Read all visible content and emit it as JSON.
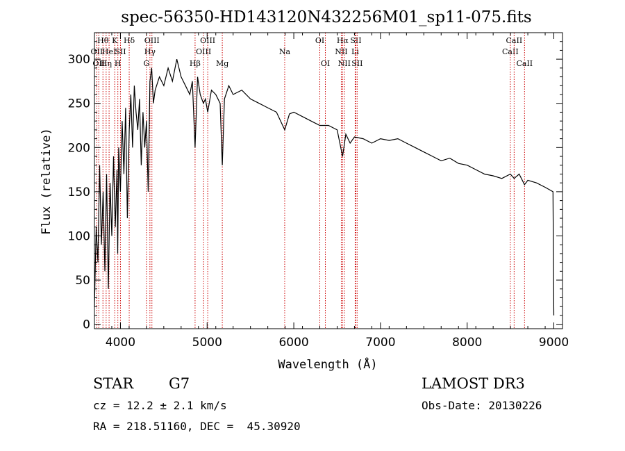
{
  "chart_data": {
    "type": "line",
    "title": "spec-56350-HD143120N432256M01_sp11-075.fits",
    "xlabel": "Wavelength (Å)",
    "ylabel": "Flux (relative)",
    "xlim": [
      3700,
      9100
    ],
    "ylim": [
      -5,
      330
    ],
    "x_ticks": [
      4000,
      5000,
      6000,
      7000,
      8000,
      9000
    ],
    "y_ticks": [
      0,
      50,
      100,
      150,
      200,
      250,
      300
    ],
    "series": [
      {
        "name": "spectrum",
        "x": [
          3700,
          3720,
          3740,
          3760,
          3780,
          3800,
          3820,
          3840,
          3860,
          3880,
          3900,
          3920,
          3940,
          3960,
          3968,
          3980,
          4000,
          4020,
          4040,
          4060,
          4080,
          4101,
          4120,
          4140,
          4160,
          4180,
          4200,
          4220,
          4240,
          4260,
          4280,
          4300,
          4320,
          4340,
          4360,
          4380,
          4400,
          4450,
          4500,
          4550,
          4600,
          4650,
          4700,
          4750,
          4800,
          4830,
          4861,
          4890,
          4920,
          4957,
          4980,
          5007,
          5050,
          5100,
          5150,
          5175,
          5200,
          5250,
          5300,
          5400,
          5500,
          5600,
          5700,
          5800,
          5895,
          5950,
          6000,
          6100,
          6200,
          6300,
          6400,
          6500,
          6563,
          6600,
          6650,
          6700,
          6800,
          6900,
          7000,
          7100,
          7200,
          7300,
          7400,
          7500,
          7600,
          7700,
          7800,
          7900,
          8000,
          8100,
          8200,
          8300,
          8400,
          8498,
          8542,
          8600,
          8662,
          8700,
          8800,
          8900,
          8990,
          9000
        ],
        "y": [
          20,
          110,
          70,
          180,
          90,
          150,
          60,
          170,
          40,
          160,
          100,
          190,
          110,
          175,
          80,
          200,
          150,
          230,
          170,
          245,
          120,
          220,
          260,
          200,
          270,
          240,
          220,
          255,
          180,
          240,
          200,
          230,
          150,
          275,
          290,
          250,
          265,
          280,
          270,
          290,
          275,
          300,
          280,
          270,
          260,
          275,
          200,
          280,
          260,
          250,
          255,
          240,
          265,
          260,
          250,
          180,
          255,
          270,
          260,
          265,
          255,
          250,
          245,
          240,
          220,
          238,
          240,
          235,
          230,
          225,
          225,
          220,
          190,
          215,
          205,
          212,
          210,
          205,
          210,
          208,
          210,
          205,
          200,
          195,
          190,
          185,
          188,
          182,
          180,
          175,
          170,
          168,
          165,
          170,
          165,
          170,
          158,
          163,
          160,
          155,
          150,
          10
        ]
      }
    ],
    "line_markers": [
      {
        "wavelength": 3727,
        "label": "OII",
        "row": 2
      },
      {
        "wavelength": 3750,
        "label": "OII",
        "row": 3
      },
      {
        "wavelength": 3798,
        "label": "Hθ",
        "row": 1
      },
      {
        "wavelength": 3835,
        "label": "Hη",
        "row": 3
      },
      {
        "wavelength": 3869,
        "label": "HeI",
        "row": 2
      },
      {
        "wavelength": 3934,
        "label": "K",
        "row": 1
      },
      {
        "wavelength": 3970,
        "label": "H",
        "row": 3
      },
      {
        "wavelength": 4000,
        "label": "SII",
        "row": 2
      },
      {
        "wavelength": 4101,
        "label": "Hδ",
        "row": 1
      },
      {
        "wavelength": 4300,
        "label": "G",
        "row": 3
      },
      {
        "wavelength": 4340,
        "label": "Hγ",
        "row": 2
      },
      {
        "wavelength": 4363,
        "label": "OIII",
        "row": 1
      },
      {
        "wavelength": 4861,
        "label": "Hβ",
        "row": 3
      },
      {
        "wavelength": 4959,
        "label": "OIII",
        "row": 2
      },
      {
        "wavelength": 5007,
        "label": "OIII",
        "row": 1
      },
      {
        "wavelength": 5175,
        "label": "Mg",
        "row": 3
      },
      {
        "wavelength": 5895,
        "label": "Na",
        "row": 2
      },
      {
        "wavelength": 6300,
        "label": "OI",
        "row": 1
      },
      {
        "wavelength": 6364,
        "label": "OI",
        "row": 3
      },
      {
        "wavelength": 6548,
        "label": "NII",
        "row": 2
      },
      {
        "wavelength": 6563,
        "label": "Hα",
        "row": 1
      },
      {
        "wavelength": 6583,
        "label": "NII",
        "row": 3
      },
      {
        "wavelength": 6708,
        "label": "Li",
        "row": 2
      },
      {
        "wavelength": 6716,
        "label": "SII",
        "row": 1
      },
      {
        "wavelength": 6731,
        "label": "SII",
        "row": 3
      },
      {
        "wavelength": 8498,
        "label": "CaII",
        "row": 2
      },
      {
        "wavelength": 8542,
        "label": "CaII",
        "row": 1
      },
      {
        "wavelength": 8662,
        "label": "CaII",
        "row": 3
      }
    ]
  },
  "footer": {
    "object_class": "STAR",
    "subclass": "G7",
    "survey": "LAMOST DR3",
    "redshift": "cz = 12.2 ± 2.1 km/s",
    "obs_date": "Obs-Date: 20130226",
    "coords": "RA = 218.51160, DEC =  45.30920"
  },
  "colors": {
    "marker": "#cc0000",
    "spectrum": "#000000"
  }
}
